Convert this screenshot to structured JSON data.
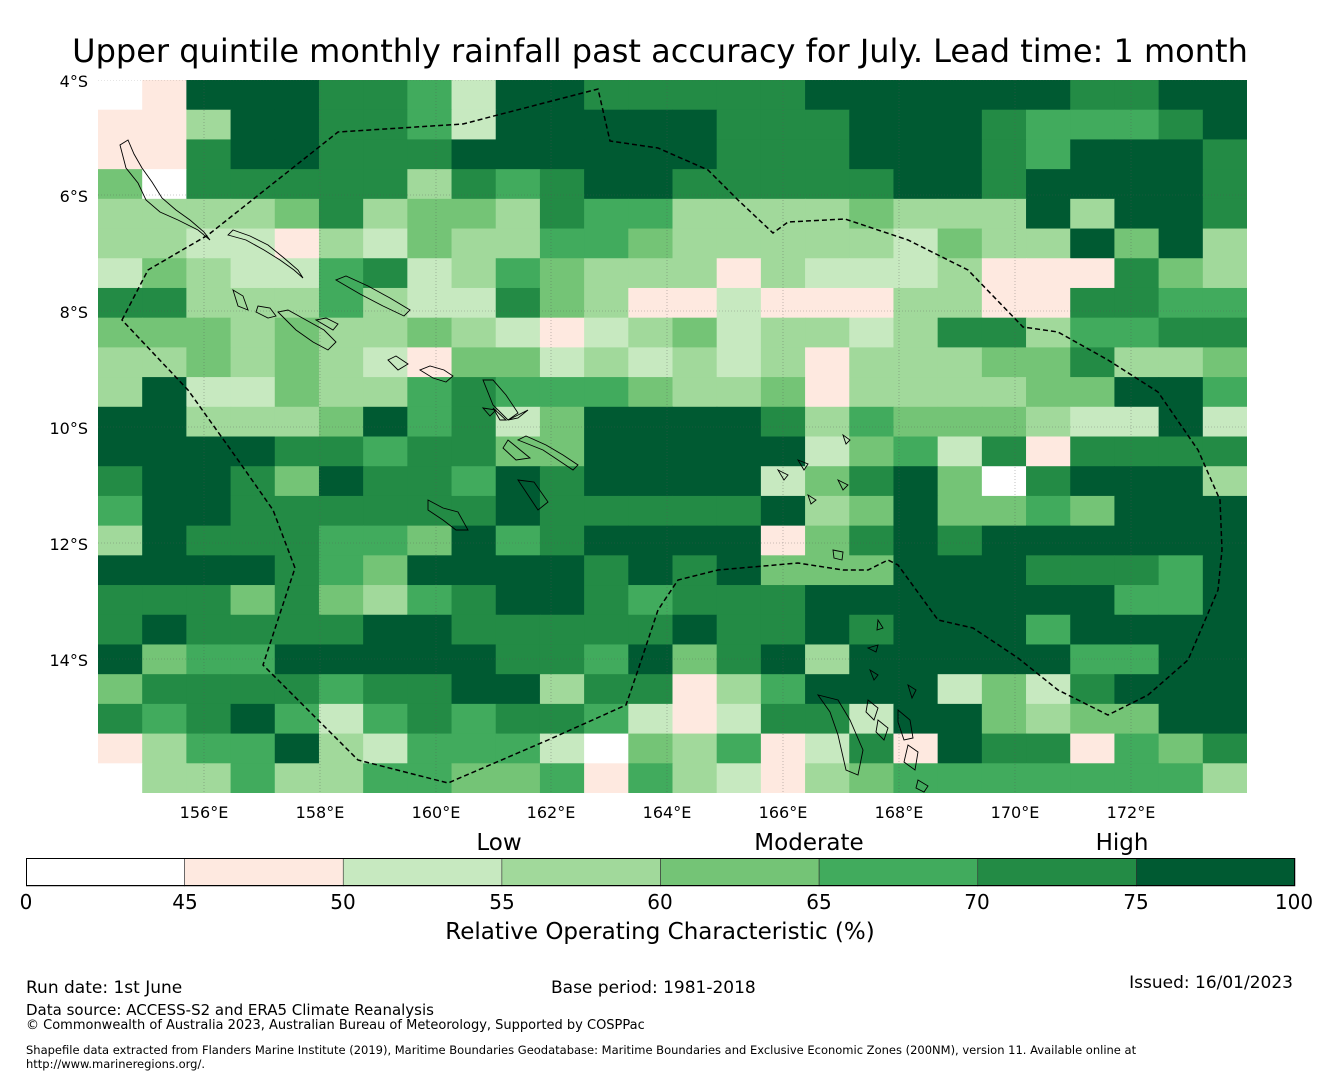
{
  "title": "Upper quintile monthly rainfall past accuracy for July. Lead time: 1 month",
  "lat_labels": [
    "4°S",
    "6°S",
    "8°S",
    "10°S",
    "12°S",
    "14°S"
  ],
  "lon_labels": [
    "156°E",
    "158°E",
    "160°E",
    "162°E",
    "164°E",
    "166°E",
    "168°E",
    "170°E",
    "172°E"
  ],
  "colorbar": {
    "categories": [
      "Low",
      "Moderate",
      "High"
    ],
    "ticks": [
      "0",
      "45",
      "50",
      "55",
      "60",
      "65",
      "70",
      "75",
      "100"
    ],
    "colors": [
      "#ffffff",
      "#fee9e0",
      "#c7e9c0",
      "#a1d99b",
      "#74c476",
      "#41ab5d",
      "#238b45",
      "#005a32"
    ],
    "label": "Relative Operating Characteristic (%)"
  },
  "grid_classes": [
    "01777665277666667777776677",
    "11377665277777666777655567",
    "11677666777777666777657776",
    "40666663656776666677677776",
    "33334634436553333433373776",
    "33221324335543333324337473",
    "24322562354333132223111643",
    "66333532264311211133116655",
    "44434334321234233236635566",
    "33434321442323231333446334",
    "37224335655543341333344775",
    "77333475624777763544432272",
    "77776656644777772452616666",
    "67764766576777724674067773",
    "57766666676666673474454777",
    "37666554756777714676777777",
    "77776547777676744477766657",
    "66646435677656667777777557",
    "67666677666667667677757777",
    "74557777766574673777775577",
    "46666566773661357772426777",
    "65675256566521266277434477",
    "13557325552043512617661546",
    "03353355445153213455555553"
  ],
  "run_date": "Run date: 1st June",
  "base_period": "Base period: 1981-2018",
  "issued": "Issued: 16/01/2023",
  "data_source": "Data source: ACCESS-S2 and ERA5 Climate Reanalysis",
  "copyright": "© Commonwealth of Australia 2023, Australian Bureau of Meteorology, Supported by COSPPac",
  "shapefile_1": "Shapefile data extracted from Flanders Marine Institute (2019), Maritime Boundaries Geodatabase: Maritime Boundaries and Exclusive Economic Zones (200NM), version 11. Available online at",
  "shapefile_2": "http://www.marineregions.org/."
}
